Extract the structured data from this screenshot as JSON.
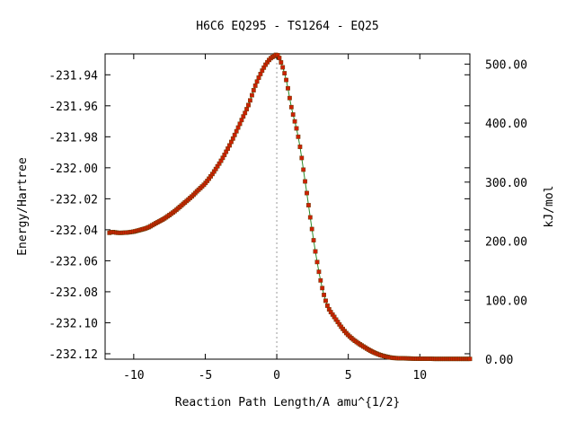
{
  "chart_data": {
    "type": "line",
    "title": "H6C6   EQ295 - TS1264 - EQ25",
    "xlabel": "Reaction Path Length/A amu^{1/2}",
    "ylabel": "Energy/Hartree",
    "y2label": "kJ/mol",
    "xlim": [
      -12,
      13.5
    ],
    "ylim": [
      -232.1235,
      -231.9265
    ],
    "y2lim": [
      0,
      517.3
    ],
    "grid": false,
    "legend": "none",
    "xticks": [
      -10,
      -5,
      0,
      5,
      10
    ],
    "yticks": [
      -231.94,
      -231.96,
      -231.98,
      -232.0,
      -232.02,
      -232.04,
      -232.06,
      -232.08,
      -232.1,
      -232.12
    ],
    "y2ticks": [
      0,
      100,
      200,
      300,
      400,
      500
    ],
    "ts_marker_x": 0,
    "colors": {
      "line": "#2a8a2a",
      "marker": "#cc2200",
      "ts_line": "#999999"
    },
    "series": [
      {
        "x": [
          -11.7,
          -11.5,
          -11.0,
          -10.5,
          -10.0,
          -9.5,
          -9.0,
          -8.5,
          -8.0,
          -7.5,
          -7.0,
          -6.5,
          -6.0,
          -5.5,
          -5.0,
          -4.5,
          -4.0,
          -3.5,
          -3.0,
          -2.5,
          -2.0,
          -1.5,
          -1.0,
          -0.5,
          -0.2,
          0.0,
          0.3,
          0.7,
          1.0,
          1.5,
          2.0,
          2.5,
          3.0,
          3.5,
          4.0,
          5.0,
          6.0,
          7.0,
          8.0,
          9.0,
          10.0,
          11.0,
          12.0,
          13.5
        ],
        "values": [
          -232.042,
          -232.0415,
          -232.042,
          -232.0418,
          -232.0412,
          -232.04,
          -232.0385,
          -232.036,
          -232.0335,
          -232.0305,
          -232.027,
          -232.023,
          -232.019,
          -232.0145,
          -232.01,
          -232.004,
          -231.997,
          -231.989,
          -231.98,
          -231.97,
          -231.96,
          -231.947,
          -231.937,
          -231.93,
          -231.928,
          -231.927,
          -231.932,
          -231.945,
          -231.96,
          -231.98,
          -232.01,
          -232.042,
          -232.07,
          -232.088,
          -232.096,
          -232.108,
          -232.115,
          -232.12,
          -232.1225,
          -232.123,
          -232.1232,
          -232.1233,
          -232.1233,
          -232.1233
        ]
      }
    ]
  }
}
